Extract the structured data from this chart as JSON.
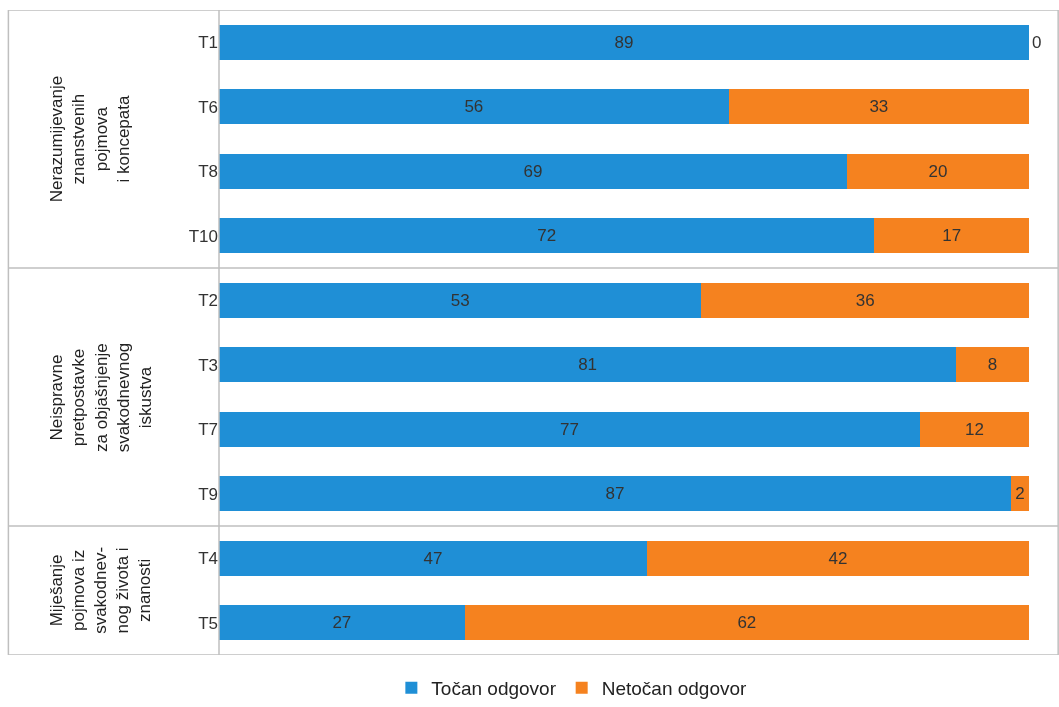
{
  "chart_data": {
    "type": "bar",
    "orientation": "horizontal",
    "stacked": true,
    "data_labels": true,
    "legend": "bottom",
    "grid": false,
    "categories": [
      "T1",
      "T6",
      "T8",
      "T10",
      "T2",
      "T3",
      "T7",
      "T9",
      "T4",
      "T5"
    ],
    "series": [
      {
        "name": "Točan odgovor",
        "color": "#1f8fd6",
        "values": [
          89,
          56,
          69,
          72,
          53,
          81,
          77,
          87,
          47,
          27
        ]
      },
      {
        "name": "Netočan odgovor",
        "color": "#f5821f",
        "values": [
          0,
          33,
          20,
          17,
          36,
          8,
          12,
          2,
          42,
          62
        ]
      }
    ],
    "annotations": [
      "Nerazumijevanje\nznanstvenih\npojmova\ni koncepata",
      "Neispravne\npretpostavke\nza objašnjenje\nsvakodnevnog\niskustva",
      "Miješanje\npojmova iz\nsvakodnev-\nnog života i\nznanosti"
    ]
  }
}
